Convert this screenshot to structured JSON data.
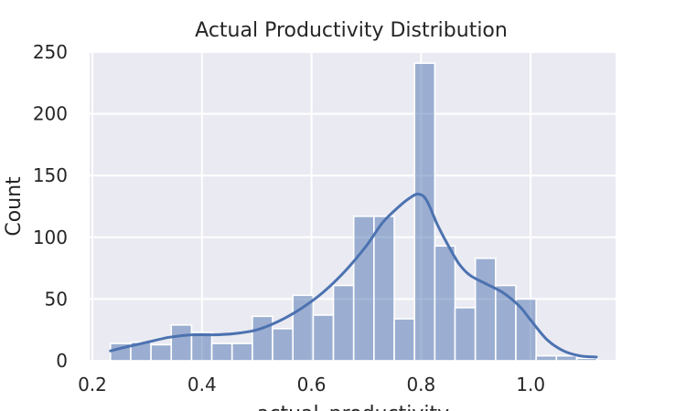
{
  "chart_data": {
    "type": "bar",
    "title": "Actual Productivity Distribution",
    "xlabel": "actual_productivity",
    "ylabel": "Count",
    "xlim": [
      0.195,
      1.155
    ],
    "ylim": [
      0,
      250
    ],
    "xticks": [
      0.2,
      0.4,
      0.6,
      0.8,
      1.0
    ],
    "yticks": [
      0,
      50,
      100,
      150,
      200,
      250
    ],
    "grid": true,
    "background_color": "#eaeaf2",
    "bar_color": "#4c72b0",
    "line_color": "#4c72b0",
    "bins": [
      {
        "x0": 0.233,
        "x1": 0.27,
        "count": 14
      },
      {
        "x0": 0.27,
        "x1": 0.307,
        "count": 15
      },
      {
        "x0": 0.307,
        "x1": 0.344,
        "count": 13
      },
      {
        "x0": 0.344,
        "x1": 0.381,
        "count": 29
      },
      {
        "x0": 0.381,
        "x1": 0.418,
        "count": 23
      },
      {
        "x0": 0.418,
        "x1": 0.455,
        "count": 14
      },
      {
        "x0": 0.455,
        "x1": 0.492,
        "count": 14
      },
      {
        "x0": 0.492,
        "x1": 0.529,
        "count": 36
      },
      {
        "x0": 0.529,
        "x1": 0.566,
        "count": 26
      },
      {
        "x0": 0.566,
        "x1": 0.603,
        "count": 53
      },
      {
        "x0": 0.603,
        "x1": 0.64,
        "count": 37
      },
      {
        "x0": 0.64,
        "x1": 0.677,
        "count": 61
      },
      {
        "x0": 0.677,
        "x1": 0.714,
        "count": 117
      },
      {
        "x0": 0.714,
        "x1": 0.751,
        "count": 117
      },
      {
        "x0": 0.751,
        "x1": 0.788,
        "count": 34
      },
      {
        "x0": 0.788,
        "x1": 0.825,
        "count": 241
      },
      {
        "x0": 0.825,
        "x1": 0.862,
        "count": 93
      },
      {
        "x0": 0.862,
        "x1": 0.899,
        "count": 43
      },
      {
        "x0": 0.899,
        "x1": 0.936,
        "count": 83
      },
      {
        "x0": 0.936,
        "x1": 0.973,
        "count": 61
      },
      {
        "x0": 0.973,
        "x1": 1.01,
        "count": 50
      },
      {
        "x0": 1.01,
        "x1": 1.047,
        "count": 4
      },
      {
        "x0": 1.047,
        "x1": 1.084,
        "count": 4
      },
      {
        "x0": 1.084,
        "x1": 1.121,
        "count": 2
      }
    ],
    "kde": [
      {
        "x": 0.233,
        "y": 8
      },
      {
        "x": 0.26,
        "y": 11
      },
      {
        "x": 0.3,
        "y": 15
      },
      {
        "x": 0.34,
        "y": 19
      },
      {
        "x": 0.38,
        "y": 21
      },
      {
        "x": 0.42,
        "y": 21
      },
      {
        "x": 0.46,
        "y": 22
      },
      {
        "x": 0.5,
        "y": 25
      },
      {
        "x": 0.54,
        "y": 32
      },
      {
        "x": 0.58,
        "y": 42
      },
      {
        "x": 0.62,
        "y": 55
      },
      {
        "x": 0.66,
        "y": 72
      },
      {
        "x": 0.7,
        "y": 93
      },
      {
        "x": 0.73,
        "y": 112
      },
      {
        "x": 0.76,
        "y": 125
      },
      {
        "x": 0.78,
        "y": 132
      },
      {
        "x": 0.795,
        "y": 135
      },
      {
        "x": 0.81,
        "y": 130
      },
      {
        "x": 0.83,
        "y": 110
      },
      {
        "x": 0.85,
        "y": 93
      },
      {
        "x": 0.87,
        "y": 78
      },
      {
        "x": 0.89,
        "y": 69
      },
      {
        "x": 0.92,
        "y": 62
      },
      {
        "x": 0.95,
        "y": 55
      },
      {
        "x": 0.98,
        "y": 44
      },
      {
        "x": 1.0,
        "y": 33
      },
      {
        "x": 1.03,
        "y": 17
      },
      {
        "x": 1.06,
        "y": 8
      },
      {
        "x": 1.09,
        "y": 4
      },
      {
        "x": 1.12,
        "y": 3
      }
    ]
  }
}
